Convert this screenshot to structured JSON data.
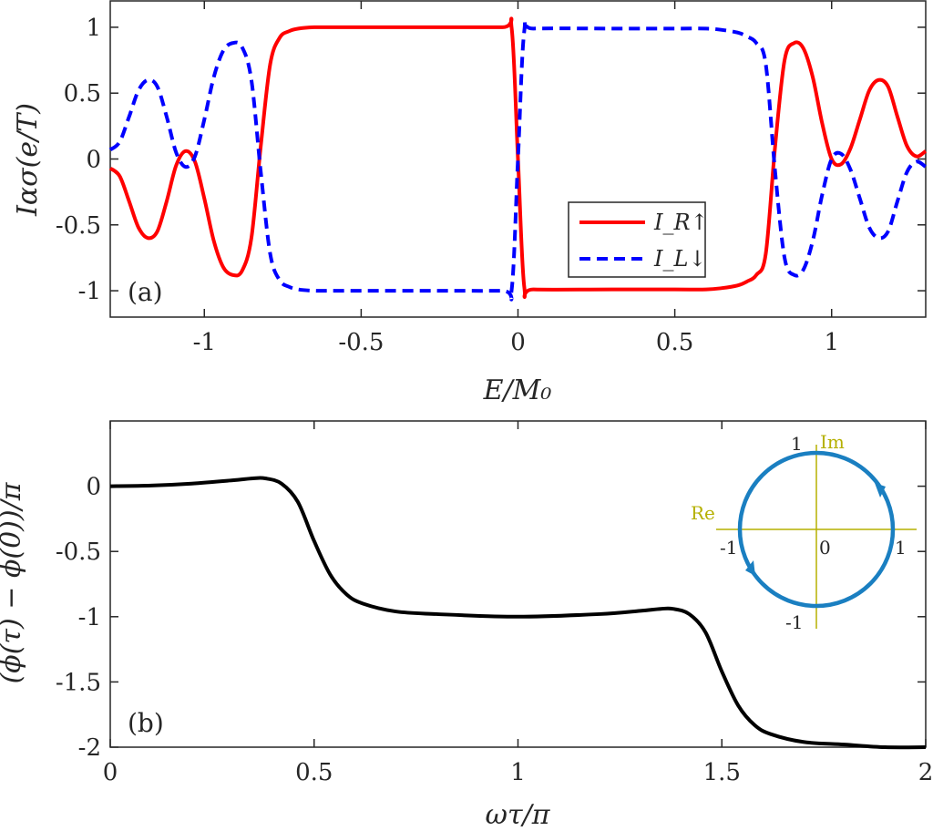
{
  "chart_data": [
    {
      "type": "line",
      "panel_label": "(a)",
      "xlabel": "E/M₀",
      "ylabel": "Iασ(e/T)",
      "xlim": [
        -1.3,
        1.3
      ],
      "ylim": [
        -1.2,
        1.2
      ],
      "xticks": [
        -1,
        -0.5,
        0,
        0.5,
        1
      ],
      "xtick_labels": [
        "-1",
        "-0.5",
        "0",
        "0.5",
        "1"
      ],
      "yticks": [
        1,
        0.5,
        0,
        -0.5,
        -1
      ],
      "ytick_labels": [
        "1",
        "0.5",
        "0",
        "-0.5",
        "-1"
      ],
      "legend_position": "bottom-right",
      "series": [
        {
          "name": "I_R↑",
          "color": "#ff0000",
          "style": "solid",
          "x": [
            -1.3,
            -1.27,
            -1.24,
            -1.21,
            -1.18,
            -1.15,
            -1.12,
            -1.09,
            -1.06,
            -1.03,
            -1.0,
            -0.97,
            -0.94,
            -0.91,
            -0.88,
            -0.85,
            -0.82,
            -0.79,
            -0.76,
            -0.73,
            -0.7,
            -0.65,
            -0.6,
            -0.5,
            -0.3,
            -0.05,
            -0.02,
            0.0,
            0.02,
            0.05,
            0.3,
            0.5,
            0.6,
            0.65,
            0.7,
            0.73,
            0.76,
            0.79,
            0.82,
            0.85,
            0.88,
            0.91,
            0.94,
            0.97,
            1.0,
            1.03,
            1.06,
            1.09,
            1.12,
            1.15,
            1.18,
            1.21,
            1.24,
            1.27,
            1.3
          ],
          "y": [
            -0.07,
            -0.13,
            -0.32,
            -0.52,
            -0.6,
            -0.55,
            -0.32,
            -0.05,
            0.06,
            -0.02,
            -0.3,
            -0.62,
            -0.82,
            -0.88,
            -0.85,
            -0.6,
            0.1,
            0.72,
            0.92,
            0.97,
            0.99,
            1.0,
            1.0,
            1.0,
            1.0,
            1.0,
            0.99,
            0.0,
            -0.97,
            -0.99,
            -0.99,
            -0.99,
            -0.99,
            -0.98,
            -0.96,
            -0.93,
            -0.88,
            -0.72,
            0.1,
            0.75,
            0.88,
            0.84,
            0.62,
            0.27,
            0.0,
            -0.04,
            0.08,
            0.3,
            0.52,
            0.6,
            0.55,
            0.32,
            0.1,
            0.02,
            0.06
          ]
        },
        {
          "name": "I_L↓",
          "color": "#0000ff",
          "style": "dashed",
          "x": [
            -1.3,
            -1.27,
            -1.24,
            -1.21,
            -1.18,
            -1.15,
            -1.12,
            -1.09,
            -1.06,
            -1.03,
            -1.0,
            -0.97,
            -0.94,
            -0.91,
            -0.88,
            -0.85,
            -0.82,
            -0.79,
            -0.76,
            -0.73,
            -0.7,
            -0.65,
            -0.6,
            -0.5,
            -0.3,
            -0.05,
            -0.02,
            0.0,
            0.02,
            0.05,
            0.3,
            0.5,
            0.6,
            0.65,
            0.7,
            0.73,
            0.76,
            0.79,
            0.82,
            0.85,
            0.88,
            0.91,
            0.94,
            0.97,
            1.0,
            1.03,
            1.06,
            1.09,
            1.12,
            1.15,
            1.18,
            1.21,
            1.24,
            1.27,
            1.3
          ],
          "y": [
            0.07,
            0.13,
            0.32,
            0.52,
            0.6,
            0.55,
            0.32,
            0.05,
            -0.06,
            0.02,
            0.3,
            0.62,
            0.82,
            0.88,
            0.85,
            0.6,
            -0.1,
            -0.72,
            -0.92,
            -0.97,
            -0.99,
            -1.0,
            -1.0,
            -1.0,
            -1.0,
            -1.0,
            -0.99,
            0.0,
            0.97,
            0.99,
            0.99,
            0.99,
            0.99,
            0.98,
            0.96,
            0.93,
            0.88,
            0.72,
            -0.1,
            -0.75,
            -0.88,
            -0.84,
            -0.62,
            -0.27,
            0.0,
            0.04,
            -0.08,
            -0.3,
            -0.52,
            -0.6,
            -0.55,
            -0.32,
            -0.1,
            -0.02,
            -0.06
          ]
        }
      ]
    },
    {
      "type": "line",
      "panel_label": "(b)",
      "xlabel": "ωτ/π",
      "ylabel": "(ϕ(τ) − ϕ(0))/π",
      "xlim": [
        0,
        2
      ],
      "ylim": [
        -2.0,
        0.5
      ],
      "xticks": [
        0,
        0.5,
        1,
        1.5,
        2
      ],
      "xtick_labels": [
        "0",
        "0.5",
        "1",
        "1.5",
        "2"
      ],
      "yticks": [
        0,
        -0.5,
        -1,
        -1.5,
        -2
      ],
      "ytick_labels": [
        "0",
        "-0.5",
        "-1",
        "-1.5",
        "-2"
      ],
      "series": [
        {
          "color": "#000000",
          "style": "solid",
          "x": [
            0,
            0.1,
            0.2,
            0.3,
            0.35,
            0.38,
            0.42,
            0.46,
            0.5,
            0.54,
            0.58,
            0.62,
            0.7,
            0.8,
            1.0,
            1.2,
            1.3,
            1.35,
            1.38,
            1.42,
            1.46,
            1.5,
            1.54,
            1.58,
            1.62,
            1.7,
            1.8,
            1.9,
            2.0
          ],
          "y": [
            0,
            0.005,
            0.02,
            0.045,
            0.06,
            0.06,
            0.02,
            -0.12,
            -0.42,
            -0.68,
            -0.83,
            -0.9,
            -0.96,
            -0.98,
            -1.0,
            -0.98,
            -0.955,
            -0.94,
            -0.94,
            -0.98,
            -1.12,
            -1.42,
            -1.68,
            -1.83,
            -1.9,
            -1.96,
            -1.98,
            -2.0,
            -2.0
          ]
        }
      ],
      "inset": {
        "re_label": "Re",
        "im_label": "Im",
        "labels": {
          "one_top": "1",
          "minus_one_left": "-1",
          "zero": "0",
          "one_right": "1",
          "minus_one_bottom": "-1"
        },
        "circle_color": "#1a7fc1",
        "axis_color": "#b5b000"
      }
    }
  ]
}
